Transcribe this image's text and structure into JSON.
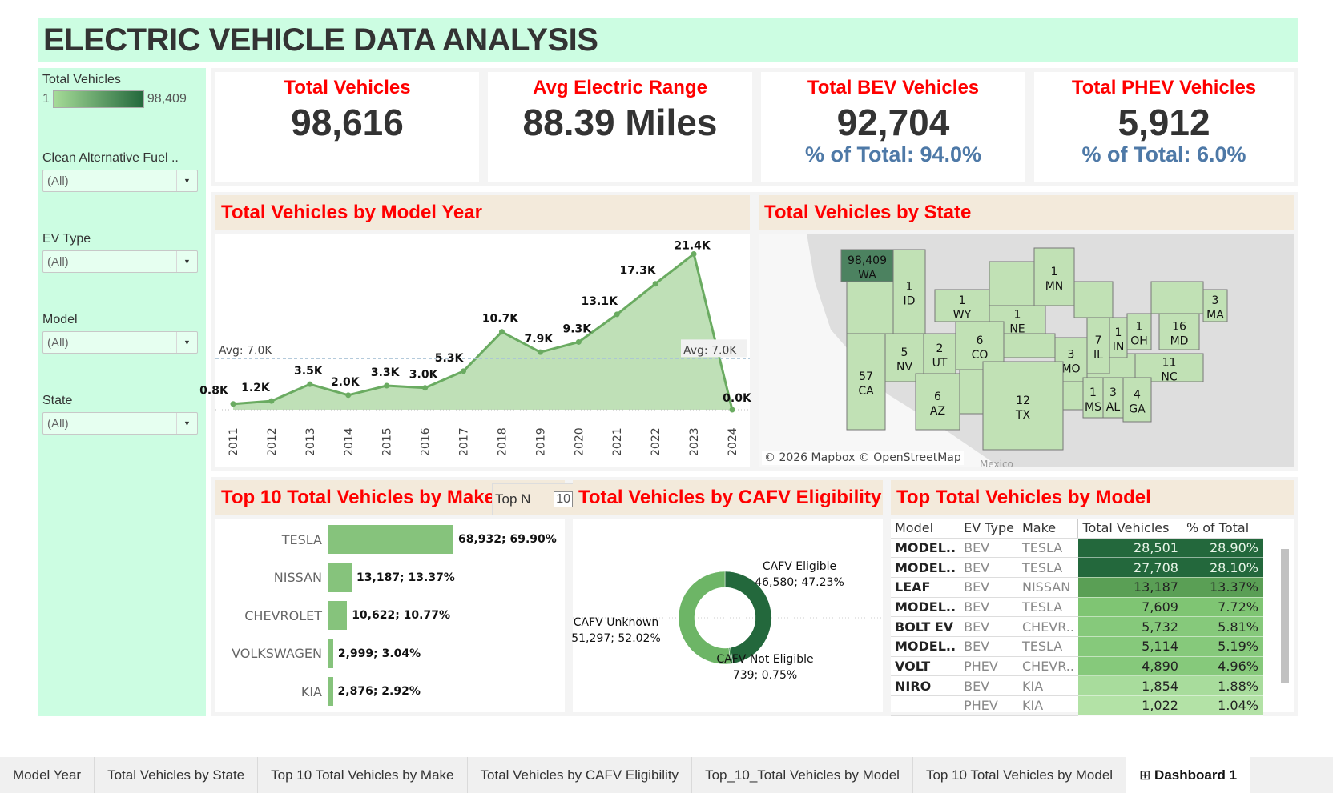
{
  "header": {
    "title": "ELECTRIC VEHICLE DATA ANALYSIS"
  },
  "sidebar": {
    "legend": {
      "label": "Total Vehicles",
      "min": "1",
      "max": "98,409",
      "colors": [
        "#a6dc98",
        "#23683c"
      ]
    },
    "filters": [
      {
        "label": "Clean Alternative Fuel ..",
        "value": "(All)"
      },
      {
        "label": "EV Type",
        "value": "(All)"
      },
      {
        "label": "Model",
        "value": "(All)"
      },
      {
        "label": "State",
        "value": "(All)"
      }
    ]
  },
  "kpis": [
    {
      "title": "Total Vehicles",
      "value": "98,616",
      "sub": ""
    },
    {
      "title": "Avg Electric Range",
      "value": "88.39 Miles",
      "sub": ""
    },
    {
      "title": "Total BEV Vehicles",
      "value": "92,704",
      "sub": "% of Total: 94.0%"
    },
    {
      "title": "Total PHEV Vehicles",
      "value": "5,912",
      "sub": "% of Total: 6.0%"
    }
  ],
  "sections": {
    "model_year": "Total Vehicles by Model Year",
    "state": "Total Vehicles by State",
    "make": "Top 10 Total Vehicles by Make",
    "cafv": "Total Vehicles by CAFV Eligibility",
    "model": "Top  Total Vehicles by Model"
  },
  "top_n": {
    "label": "Top N",
    "value": "10"
  },
  "map": {
    "attribution": "© 2026 Mapbox © OpenStreetMap",
    "country_label": "Mexico"
  },
  "chart_data": [
    {
      "type": "area",
      "title": "Total Vehicles by Model Year",
      "x": [
        "2011",
        "2012",
        "2013",
        "2014",
        "2015",
        "2016",
        "2017",
        "2018",
        "2019",
        "2020",
        "2021",
        "2022",
        "2023",
        "2024"
      ],
      "values": [
        800,
        1200,
        3500,
        2000,
        3300,
        3000,
        5300,
        10700,
        7900,
        9300,
        13100,
        17300,
        21400,
        0
      ],
      "labels": [
        "0.8K",
        "1.2K",
        "3.5K",
        "2.0K",
        "3.3K",
        "3.0K",
        "5.3K",
        "10.7K",
        "7.9K",
        "9.3K",
        "13.1K",
        "17.3K",
        "21.4K",
        "0.0K"
      ],
      "reference_line": {
        "value": 7000,
        "label": "Avg: 7.0K"
      },
      "ylim": [
        0,
        22000
      ],
      "color": "#6aab61"
    },
    {
      "type": "bar",
      "title": "Top 10 Total Vehicles by Make",
      "categories": [
        "TESLA",
        "NISSAN",
        "CHEVROLET",
        "VOLKSWAGEN",
        "KIA"
      ],
      "values": [
        68932,
        13187,
        10622,
        2999,
        2876
      ],
      "labels": [
        "68,932; 69.90%",
        "13,187; 13.37%",
        "10,622; 10.77%",
        "2,999; 3.04%",
        "2,876; 2.92%"
      ],
      "color": "#86c37c"
    },
    {
      "type": "pie",
      "title": "Total Vehicles by CAFV Eligibility",
      "categories": [
        "CAFV Eligible",
        "CAFV Not Eligible",
        "CAFV Unknown"
      ],
      "values": [
        46580,
        739,
        51297
      ],
      "labels": [
        "46,580; 47.23%",
        "739; 0.75%",
        "51,297; 52.02%"
      ],
      "colors": [
        "#23683c",
        "#3b8a4c",
        "#6db566"
      ]
    },
    {
      "type": "table",
      "title": "Top  Total Vehicles by Model",
      "columns": [
        "Model",
        "EV Type",
        "Make",
        "Total Vehicles",
        "% of Total"
      ],
      "rows": [
        [
          "MODEL..",
          "BEV",
          "TESLA",
          "28,501",
          "28.90%"
        ],
        [
          "MODEL..",
          "BEV",
          "TESLA",
          "27,708",
          "28.10%"
        ],
        [
          "LEAF",
          "BEV",
          "NISSAN",
          "13,187",
          "13.37%"
        ],
        [
          "MODEL..",
          "BEV",
          "TESLA",
          "7,609",
          "7.72%"
        ],
        [
          "BOLT EV",
          "BEV",
          "CHEVR..",
          "5,732",
          "5.81%"
        ],
        [
          "MODEL..",
          "BEV",
          "TESLA",
          "5,114",
          "5.19%"
        ],
        [
          "VOLT",
          "PHEV",
          "CHEVR..",
          "4,890",
          "4.96%"
        ],
        [
          "NIRO",
          "BEV",
          "KIA",
          "1,854",
          "1.88%"
        ],
        [
          "",
          "PHEV",
          "KIA",
          "1,022",
          "1.04%"
        ]
      ],
      "row_colors": [
        "#23683c",
        "#23683c",
        "#5a9f55",
        "#7fc573",
        "#86c97b",
        "#86c97b",
        "#86c97b",
        "#a8dc9c",
        "#b3e2a6"
      ]
    }
  ],
  "states": [
    {
      "code": "WA",
      "value": "98,409"
    },
    {
      "code": "ID",
      "value": "1"
    },
    {
      "code": "WY",
      "value": "1"
    },
    {
      "code": "MN",
      "value": "1"
    },
    {
      "code": "NE",
      "value": "1"
    },
    {
      "code": "NV",
      "value": "5"
    },
    {
      "code": "UT",
      "value": "2"
    },
    {
      "code": "CO",
      "value": "6"
    },
    {
      "code": "CA",
      "value": "57"
    },
    {
      "code": "AZ",
      "value": "6"
    },
    {
      "code": "MO",
      "value": "3"
    },
    {
      "code": "IL",
      "value": "7"
    },
    {
      "code": "IN",
      "value": "1"
    },
    {
      "code": "OH",
      "value": "1"
    },
    {
      "code": "MD",
      "value": "16"
    },
    {
      "code": "MA",
      "value": "3"
    },
    {
      "code": "NC",
      "value": "11"
    },
    {
      "code": "TX",
      "value": "12"
    },
    {
      "code": "MS",
      "value": "1"
    },
    {
      "code": "AL",
      "value": "3"
    },
    {
      "code": "GA",
      "value": "4"
    }
  ],
  "tabs": [
    {
      "label": "Model Year",
      "active": false
    },
    {
      "label": "Total Vehicles by State",
      "active": false
    },
    {
      "label": "Top 10 Total Vehicles by Make",
      "active": false
    },
    {
      "label": "Total Vehicles by CAFV Eligibility",
      "active": false
    },
    {
      "label": "Top_10_Total Vehicles by Model",
      "active": false
    },
    {
      "label": "Top 10 Total Vehicles by Model",
      "active": false
    },
    {
      "label": "Dashboard 1",
      "active": true,
      "icon": "dashboard-icon"
    }
  ]
}
